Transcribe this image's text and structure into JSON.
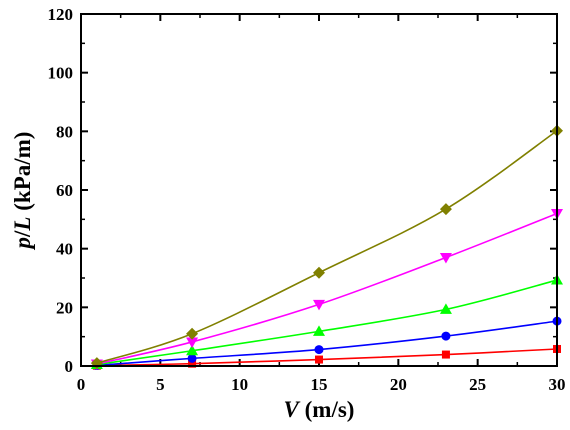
{
  "chart_data": {
    "type": "line",
    "title": "",
    "xlabel_var": "V",
    "xlabel_unit": " (m/s)",
    "ylabel_var_p": "p",
    "ylabel_slash": "/",
    "ylabel_var_L": "L",
    "ylabel_unit": " (kPa/m)",
    "xlim": [
      0,
      30
    ],
    "ylim": [
      0,
      120
    ],
    "xticks": [
      0,
      5,
      10,
      15,
      20,
      25,
      30
    ],
    "yticks": [
      0,
      20,
      40,
      60,
      80,
      100,
      120
    ],
    "grid": false,
    "legend": "none",
    "x": [
      1,
      7,
      15,
      23,
      30
    ],
    "series": [
      {
        "values": [
          0.1,
          0.8,
          2.2,
          3.9,
          5.8
        ],
        "color": "#ff0000",
        "marker": "square"
      },
      {
        "values": [
          0.2,
          2.6,
          5.6,
          10.2,
          15.3
        ],
        "color": "#0000ff",
        "marker": "circle"
      },
      {
        "values": [
          0.5,
          5.2,
          11.8,
          19.3,
          29.3
        ],
        "color": "#00ff00",
        "marker": "triangle-up"
      },
      {
        "values": [
          0.7,
          8.2,
          21.0,
          37.0,
          52.0
        ],
        "color": "#ff00ff",
        "marker": "triangle-down"
      },
      {
        "values": [
          1.0,
          11.0,
          31.8,
          53.5,
          80.2
        ],
        "color": "#808000",
        "marker": "diamond"
      }
    ]
  }
}
